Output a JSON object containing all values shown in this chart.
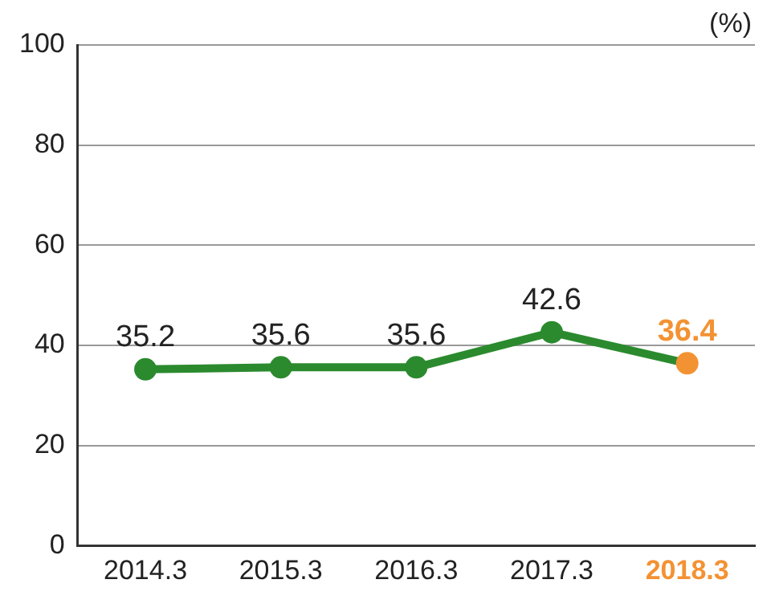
{
  "chart_data": {
    "type": "line",
    "ylabel": "(%)",
    "categories": [
      "2014.3",
      "2015.3",
      "2016.3",
      "2017.3",
      "2018.3"
    ],
    "series": [
      {
        "color": "#2b8a2e",
        "colors": [
          "#2b8a2e",
          "#2b8a2e",
          "#2b8a2e",
          "#2b8a2e",
          "#f39233"
        ],
        "values": [
          35.2,
          35.6,
          35.6,
          42.6,
          36.4
        ]
      }
    ],
    "ylim": [
      0,
      100
    ],
    "yticks": [
      0,
      20,
      40,
      60,
      80,
      100
    ],
    "grid": "y",
    "legend": false,
    "marker": "circle",
    "line_style": "solid",
    "data_labels": true
  }
}
